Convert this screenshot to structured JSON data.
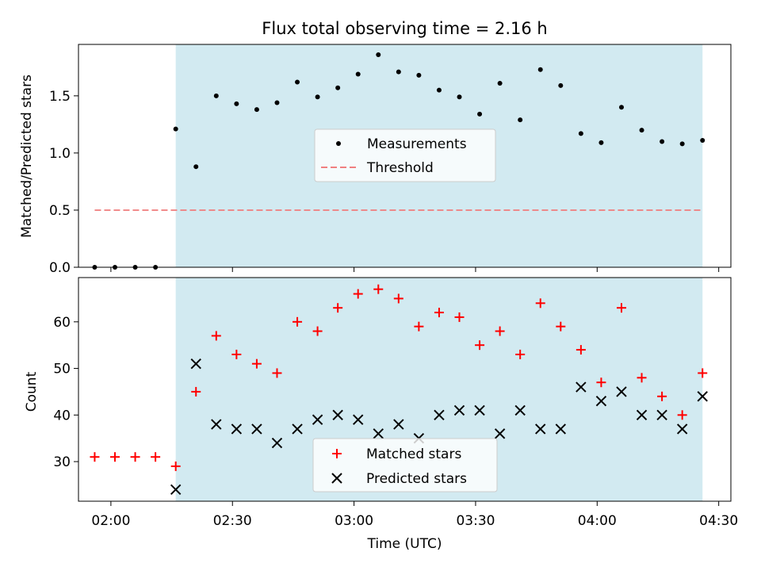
{
  "chart_data": [
    {
      "type": "scatter",
      "title": "Flux total observing time = 2.16 h",
      "ylabel": "Matched/Predicted stars",
      "xlabel": "",
      "x_range": [
        "01:52",
        "04:33"
      ],
      "ylim": [
        0,
        1.95
      ],
      "yticks": [
        "0.0",
        "0.5",
        "1.0",
        "1.5"
      ],
      "shaded_interval": [
        "02:16",
        "04:26"
      ],
      "shade_color": "#add8e6",
      "threshold": {
        "name": "Threshold",
        "value": 0.5,
        "x_range": [
          "01:56",
          "04:26"
        ],
        "color": "#f08080",
        "style": "dashed"
      },
      "series": [
        {
          "name": "Measurements",
          "marker": "dot",
          "color": "#000000",
          "x": [
            "01:56",
            "02:01",
            "02:06",
            "02:11",
            "02:16",
            "02:21",
            "02:26",
            "02:31",
            "02:36",
            "02:41",
            "02:46",
            "02:51",
            "02:56",
            "03:01",
            "03:06",
            "03:11",
            "03:16",
            "03:21",
            "03:26",
            "03:31",
            "03:36",
            "03:41",
            "03:46",
            "03:51",
            "03:56",
            "04:01",
            "04:06",
            "04:11",
            "04:16",
            "04:21",
            "04:26"
          ],
          "y": [
            0,
            0,
            0,
            0,
            1.21,
            0.88,
            1.5,
            1.43,
            1.38,
            1.44,
            1.62,
            1.49,
            1.57,
            1.69,
            1.86,
            1.71,
            1.68,
            1.55,
            1.49,
            1.34,
            1.61,
            1.29,
            1.73,
            1.59,
            1.17,
            1.09,
            1.4,
            1.2,
            1.1,
            1.08,
            1.11
          ]
        }
      ],
      "legend": {
        "placement": "center",
        "entries": [
          "Measurements",
          "Threshold"
        ]
      }
    },
    {
      "type": "scatter",
      "title": "",
      "ylabel": "Count",
      "xlabel": "Time (UTC)",
      "x_range": [
        "01:52",
        "04:33"
      ],
      "xticks": [
        "02:00",
        "02:30",
        "03:00",
        "03:30",
        "04:00",
        "04:30"
      ],
      "ylim": [
        21.5,
        69.5
      ],
      "yticks": [
        "30",
        "40",
        "50",
        "60"
      ],
      "shaded_interval": [
        "02:16",
        "04:26"
      ],
      "shade_color": "#add8e6",
      "series": [
        {
          "name": "Matched stars",
          "marker": "plus",
          "color": "#ff0000",
          "x": [
            "01:56",
            "02:01",
            "02:06",
            "02:11",
            "02:16",
            "02:21",
            "02:26",
            "02:31",
            "02:36",
            "02:41",
            "02:46",
            "02:51",
            "02:56",
            "03:01",
            "03:06",
            "03:11",
            "03:16",
            "03:21",
            "03:26",
            "03:31",
            "03:36",
            "03:41",
            "03:46",
            "03:51",
            "03:56",
            "04:01",
            "04:06",
            "04:11",
            "04:16",
            "04:21",
            "04:26"
          ],
          "y": [
            31,
            31,
            31,
            31,
            29,
            45,
            57,
            53,
            51,
            49,
            60,
            58,
            63,
            66,
            67,
            65,
            59,
            62,
            61,
            55,
            58,
            53,
            64,
            59,
            54,
            47,
            63,
            48,
            44,
            40,
            49
          ]
        },
        {
          "name": "Predicted stars",
          "marker": "x",
          "color": "#000000",
          "x": [
            "02:16",
            "02:21",
            "02:26",
            "02:31",
            "02:36",
            "02:41",
            "02:46",
            "02:51",
            "02:56",
            "03:01",
            "03:06",
            "03:11",
            "03:16",
            "03:21",
            "03:26",
            "03:31",
            "03:36",
            "03:41",
            "03:46",
            "03:51",
            "03:56",
            "04:01",
            "04:06",
            "04:11",
            "04:16",
            "04:21",
            "04:26"
          ],
          "y": [
            24,
            51,
            38,
            37,
            37,
            34,
            37,
            39,
            40,
            39,
            36,
            38,
            35,
            40,
            41,
            41,
            36,
            41,
            37,
            37,
            46,
            43,
            45,
            40,
            40,
            37,
            44
          ]
        }
      ],
      "legend": {
        "placement": "lower center",
        "entries": [
          "Matched stars",
          "Predicted stars"
        ]
      }
    }
  ]
}
